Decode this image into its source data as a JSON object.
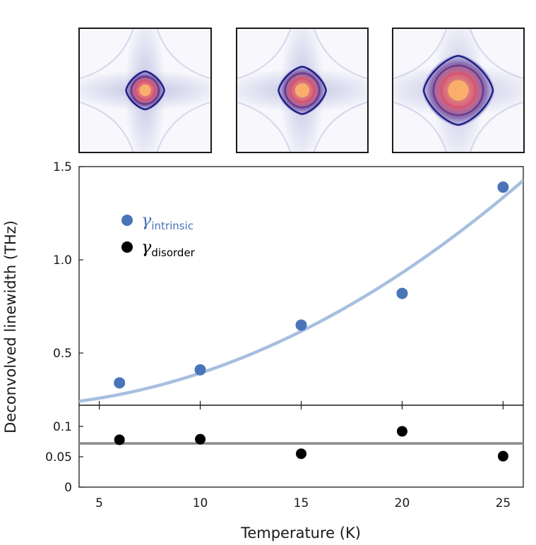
{
  "colors": {
    "intrinsic": "#4a74b8",
    "intrinsic_fit": "#a7bfdf",
    "disorder": "#000000",
    "disorder_fit": "#8a8a8a",
    "map_bg": "#f7f7fc",
    "map_mid": "#8e90cc",
    "map_dark": "#1f1f86",
    "map_contour_mid": "#6a3a8a",
    "map_contour_inner": "#d9506a",
    "map_core": "#f9ae6c"
  },
  "chart_data": [
    {
      "type": "scatter",
      "panel": "top",
      "xlabel": "Temperature (K)",
      "ylabel": "Deconvolved linewidth (THz)",
      "xlim": [
        4,
        26
      ],
      "ylim": [
        0.22,
        1.5
      ],
      "xticks": [
        5,
        10,
        15,
        20,
        25
      ],
      "yticks": [
        0.5,
        1.0,
        1.5
      ],
      "ytick_labels": [
        "0.5",
        "1.0",
        "1.5"
      ],
      "legend": {
        "position": "top-left",
        "entries": [
          {
            "symbol": "γ",
            "subscript": "intrinsic",
            "color": "#4a74b8"
          },
          {
            "symbol": "γ",
            "subscript": "disorder",
            "color": "#000000"
          }
        ]
      },
      "series": [
        {
          "name": "γintrinsic",
          "x": [
            6,
            10,
            15,
            20,
            25
          ],
          "y": [
            0.34,
            0.41,
            0.65,
            0.82,
            1.39
          ]
        }
      ],
      "fit": {
        "name": "intrinsic fit",
        "form": "a + b*T^2",
        "a": 0.213,
        "b": 0.001794
      }
    },
    {
      "type": "scatter",
      "panel": "bottom",
      "xlim": [
        4,
        26
      ],
      "ylim": [
        0,
        0.135
      ],
      "xticks": [
        5,
        10,
        15,
        20,
        25
      ],
      "xtick_labels": [
        "5",
        "10",
        "15",
        "20",
        "25"
      ],
      "yticks": [
        0,
        0.05,
        0.1
      ],
      "ytick_labels": [
        "0",
        "0.05",
        "0.1"
      ],
      "series": [
        {
          "name": "γdisorder",
          "x": [
            6,
            10,
            15,
            20,
            25
          ],
          "y": [
            0.078,
            0.079,
            0.055,
            0.092,
            0.051
          ]
        }
      ],
      "fit": {
        "name": "disorder fit",
        "form": "constant",
        "value": 0.072
      }
    }
  ],
  "insets": [
    {
      "name": "inset-low-temperature",
      "relative_size": 0.22
    },
    {
      "name": "inset-mid-temperature",
      "relative_size": 0.32
    },
    {
      "name": "inset-high-temperature",
      "relative_size": 0.55
    }
  ]
}
